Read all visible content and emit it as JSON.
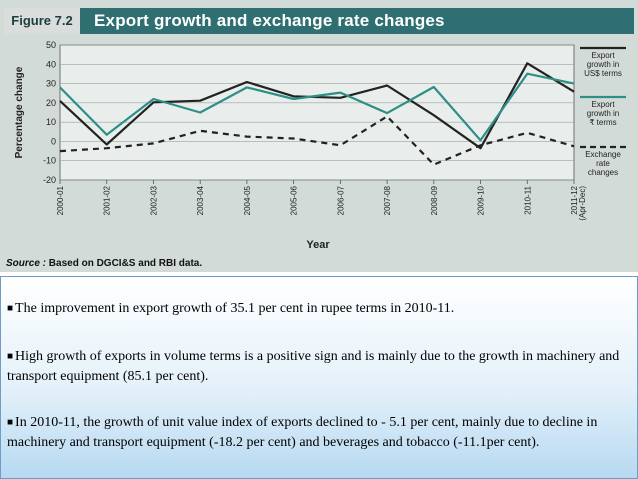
{
  "figure": {
    "label": "Figure 7.2",
    "title": "Export growth and exchange rate changes",
    "source_label": "Source :",
    "source_text": "Based on DGCI&S and RBI data."
  },
  "chart_data": {
    "type": "line",
    "title": "Export growth and exchange rate changes",
    "xlabel": "Year",
    "ylabel": "Percentage change",
    "ylim": [
      -20,
      50
    ],
    "yticks": [
      50,
      40,
      30,
      20,
      10,
      0,
      -10,
      -20
    ],
    "grid": true,
    "legend_position": "right",
    "categories": [
      "2000-01",
      "2001-02",
      "2002-03",
      "2003-04",
      "2004-05",
      "2005-06",
      "2006-07",
      "2007-08",
      "2008-09",
      "2009-10",
      "2010-11",
      "2011-12 (Apr-Dec)"
    ],
    "series": [
      {
        "name": "Export growth in US$ terms",
        "color": "#222222",
        "dash": "solid",
        "values": [
          21,
          -1.6,
          20.3,
          21.1,
          30.8,
          23.4,
          22.6,
          29,
          13.6,
          -3.5,
          40.5,
          25.8
        ]
      },
      {
        "name": "Export growth in ₹ terms",
        "color": "#2e8f86",
        "dash": "solid",
        "values": [
          28,
          3.5,
          22,
          15,
          28,
          22,
          25.3,
          14.7,
          28.2,
          0.6,
          35.1,
          30
        ]
      },
      {
        "name": "Exchange rate changes",
        "color": "#222222",
        "dash": "dashed",
        "values": [
          -5,
          -3.5,
          -1,
          5.5,
          2.5,
          1.5,
          -2,
          13,
          -12,
          -2,
          4.5,
          -2.5
        ]
      }
    ]
  },
  "legend": [
    {
      "lines": [
        "Export",
        "growth in",
        "US$ terms"
      ]
    },
    {
      "lines": [
        "Export",
        "growth in",
        "₹ terms"
      ]
    },
    {
      "lines": [
        "Exchange",
        "rate",
        "changes"
      ]
    }
  ],
  "notes": [
    "The improvement in export growth of 35.1 per cent in rupee terms in 2010-11.",
    "High growth of exports in volume terms is a positive sign and is mainly due to the growth in machinery and transport equipment (85.1 per cent).",
    "In 2010-11, the growth of unit value index of exports declined to - 5.1 per cent, mainly due to decline in machinery and transport equipment (-18.2 per cent) and beverages and tobacco (-11.1per cent)."
  ]
}
